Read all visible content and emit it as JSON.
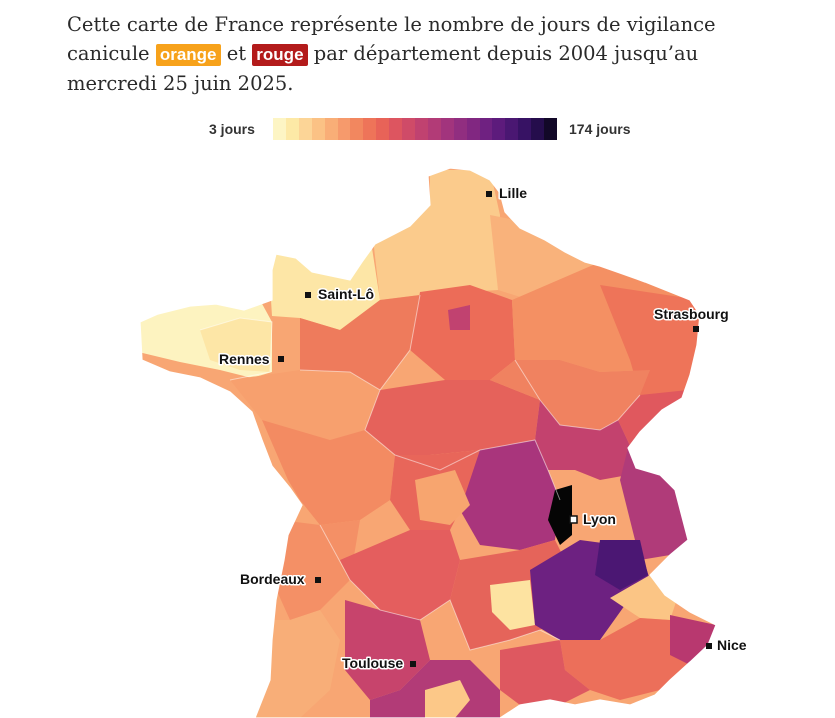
{
  "intro": {
    "text_before": "Cette carte de France représente le nombre de jours de vigilance canicule",
    "tag_orange": "orange",
    "text_mid": "et",
    "tag_rouge": "rouge",
    "text_after": "par département depuis 2004 jusqu’au mercredi 25 juin 2025."
  },
  "colors": {
    "orange_tag": "#f7a21b",
    "rouge_tag": "#b31b1b",
    "scale": [
      "#fdf5c4",
      "#fde9a6",
      "#fcd597",
      "#fbc285",
      "#f9ae77",
      "#f69a6c",
      "#f2875f",
      "#ee7459",
      "#e86358",
      "#dd5560",
      "#cf4b68",
      "#c04270",
      "#b23b77",
      "#a2347d",
      "#912e80",
      "#812781",
      "#6f2181",
      "#5d1b7c",
      "#4a1772",
      "#371264",
      "#250d4c",
      "#120828"
    ]
  },
  "legend": {
    "min_label": "3 jours",
    "max_label": "174 jours",
    "min_value": 3,
    "max_value": 174
  },
  "cities": [
    {
      "name": "Lille"
    },
    {
      "name": "Saint-Lô"
    },
    {
      "name": "Strasbourg"
    },
    {
      "name": "Rennes"
    },
    {
      "name": "Lyon"
    },
    {
      "name": "Bordeaux"
    },
    {
      "name": "Toulouse"
    },
    {
      "name": "Nice"
    }
  ]
}
